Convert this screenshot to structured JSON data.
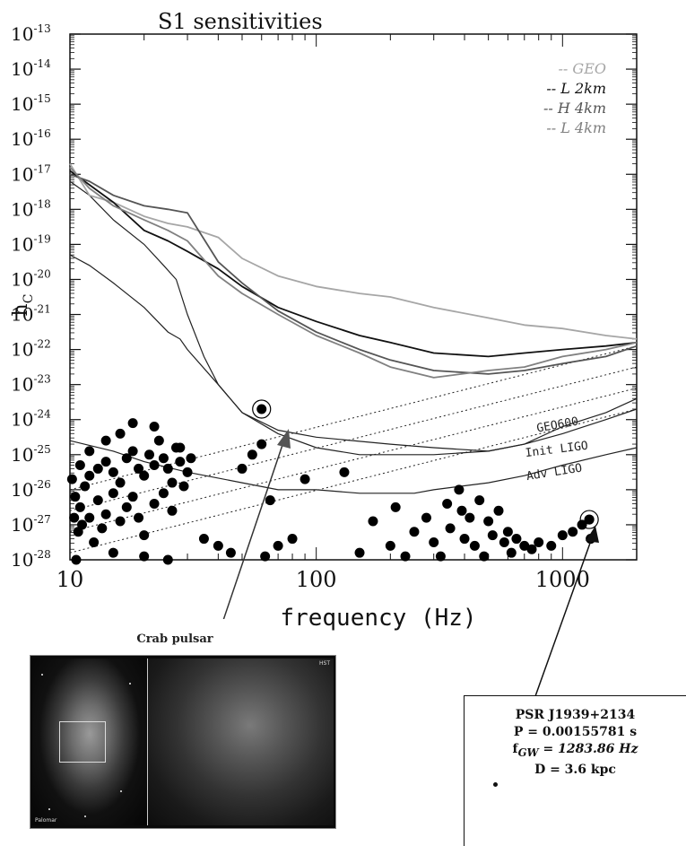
{
  "chart_data": {
    "type": "line",
    "title": "S1 sensitivities",
    "xlabel": "frequency (Hz)",
    "ylabel": "h",
    "ylabel_sub": "C",
    "xscale": "log",
    "yscale": "log",
    "xlim": [
      10,
      2000
    ],
    "ylim": [
      1e-28,
      1e-13
    ],
    "x_ticks": [
      {
        "value": 10,
        "label": "10"
      },
      {
        "value": 100,
        "label": "100"
      },
      {
        "value": 1000,
        "label": "1000"
      }
    ],
    "y_tick_base": "10",
    "y_tick_exponents": [
      "-13",
      "-14",
      "-15",
      "-16",
      "-17",
      "-18",
      "-19",
      "-20",
      "-21",
      "-22",
      "-23",
      "-24",
      "-25",
      "-26",
      "-27",
      "-28"
    ],
    "legend": {
      "placement": "top-right",
      "entries": [
        {
          "name": "-- GEO",
          "color": "#a6a6a6"
        },
        {
          "name": "-- L 2km",
          "color": "#111111"
        },
        {
          "name": "-- H 4km",
          "color": "#555555"
        },
        {
          "name": "-- L 4km",
          "color": "#808080"
        }
      ]
    },
    "measured_series": [
      {
        "name": "GEO",
        "color": "#a6a6a6",
        "points": [
          [
            10,
            -16.7
          ],
          [
            12,
            -17.6
          ],
          [
            15,
            -17.8
          ],
          [
            20,
            -18.2
          ],
          [
            25,
            -18.4
          ],
          [
            30,
            -18.5
          ],
          [
            40,
            -18.8
          ],
          [
            50,
            -19.4
          ],
          [
            70,
            -19.9
          ],
          [
            100,
            -20.2
          ],
          [
            150,
            -20.4
          ],
          [
            200,
            -20.5
          ],
          [
            300,
            -20.8
          ],
          [
            500,
            -21.1
          ],
          [
            700,
            -21.3
          ],
          [
            1000,
            -21.4
          ],
          [
            1500,
            -21.6
          ],
          [
            2000,
            -21.7
          ]
        ]
      },
      {
        "name": "L 2km",
        "color": "#111111",
        "points": [
          [
            10,
            -16.9
          ],
          [
            12,
            -17.3
          ],
          [
            15,
            -17.8
          ],
          [
            20,
            -18.6
          ],
          [
            25,
            -18.9
          ],
          [
            30,
            -19.2
          ],
          [
            40,
            -19.7
          ],
          [
            50,
            -20.2
          ],
          [
            70,
            -20.8
          ],
          [
            100,
            -21.2
          ],
          [
            150,
            -21.6
          ],
          [
            200,
            -21.8
          ],
          [
            300,
            -22.1
          ],
          [
            500,
            -22.2
          ],
          [
            700,
            -22.1
          ],
          [
            1000,
            -22.0
          ],
          [
            1500,
            -21.9
          ],
          [
            2000,
            -21.8
          ]
        ]
      },
      {
        "name": "H 4km",
        "color": "#555555",
        "points": [
          [
            10,
            -17.0
          ],
          [
            12,
            -17.2
          ],
          [
            15,
            -17.6
          ],
          [
            20,
            -17.9
          ],
          [
            25,
            -18.0
          ],
          [
            30,
            -18.1
          ],
          [
            40,
            -19.5
          ],
          [
            50,
            -20.1
          ],
          [
            70,
            -20.9
          ],
          [
            100,
            -21.5
          ],
          [
            150,
            -22.0
          ],
          [
            200,
            -22.3
          ],
          [
            300,
            -22.6
          ],
          [
            500,
            -22.7
          ],
          [
            700,
            -22.6
          ],
          [
            1000,
            -22.4
          ],
          [
            1500,
            -22.2
          ],
          [
            2000,
            -21.9
          ]
        ]
      },
      {
        "name": "L 4km",
        "color": "#808080",
        "points": [
          [
            10,
            -16.8
          ],
          [
            12,
            -17.4
          ],
          [
            15,
            -17.9
          ],
          [
            20,
            -18.3
          ],
          [
            25,
            -18.6
          ],
          [
            30,
            -18.9
          ],
          [
            40,
            -19.9
          ],
          [
            50,
            -20.4
          ],
          [
            70,
            -21.0
          ],
          [
            100,
            -21.6
          ],
          [
            150,
            -22.1
          ],
          [
            200,
            -22.5
          ],
          [
            300,
            -22.8
          ],
          [
            500,
            -22.6
          ],
          [
            700,
            -22.5
          ],
          [
            1000,
            -22.2
          ],
          [
            1500,
            -22.0
          ],
          [
            2000,
            -21.8
          ]
        ]
      }
    ],
    "design_curves": [
      {
        "name": "GEO600",
        "label": "GEO600",
        "points": [
          [
            10,
            -17.2
          ],
          [
            12,
            -17.6
          ],
          [
            15,
            -18.3
          ],
          [
            20,
            -19.0
          ],
          [
            24,
            -19.6
          ],
          [
            27,
            -20.0
          ],
          [
            30,
            -21.0
          ],
          [
            35,
            -22.2
          ],
          [
            40,
            -23.0
          ],
          [
            50,
            -23.8
          ],
          [
            70,
            -24.3
          ],
          [
            100,
            -24.5
          ],
          [
            200,
            -24.7
          ],
          [
            300,
            -24.8
          ],
          [
            500,
            -24.9
          ],
          [
            700,
            -24.7
          ],
          [
            1000,
            -24.2
          ],
          [
            1500,
            -23.8
          ],
          [
            2000,
            -23.4
          ]
        ]
      },
      {
        "name": "Init LIGO",
        "label": "Init LIGO",
        "points": [
          [
            10,
            -19.3
          ],
          [
            12,
            -19.6
          ],
          [
            15,
            -20.1
          ],
          [
            20,
            -20.8
          ],
          [
            25,
            -21.5
          ],
          [
            28,
            -21.7
          ],
          [
            30,
            -22.0
          ],
          [
            40,
            -23.0
          ],
          [
            50,
            -23.8
          ],
          [
            70,
            -24.4
          ],
          [
            100,
            -24.8
          ],
          [
            150,
            -25.0
          ],
          [
            200,
            -25.0
          ],
          [
            300,
            -25.0
          ],
          [
            500,
            -24.9
          ],
          [
            700,
            -24.7
          ],
          [
            1000,
            -24.4
          ],
          [
            1500,
            -24.0
          ],
          [
            2000,
            -23.7
          ]
        ]
      },
      {
        "name": "Adv LIGO",
        "label": "Adv LIGO",
        "points": [
          [
            10,
            -24.6
          ],
          [
            15,
            -24.9
          ],
          [
            20,
            -25.2
          ],
          [
            30,
            -25.5
          ],
          [
            50,
            -25.8
          ],
          [
            70,
            -26.0
          ],
          [
            100,
            -26.0
          ],
          [
            150,
            -26.1
          ],
          [
            200,
            -26.1
          ],
          [
            250,
            -26.1
          ],
          [
            300,
            -26.0
          ],
          [
            500,
            -25.8
          ],
          [
            700,
            -25.6
          ],
          [
            1000,
            -25.3
          ],
          [
            1500,
            -25.0
          ],
          [
            2000,
            -24.8
          ]
        ]
      }
    ],
    "reference_lines": [
      {
        "style": "dotted",
        "points": [
          [
            10,
            -26.0
          ],
          [
            2000,
            -21.9
          ]
        ]
      },
      {
        "style": "dotted",
        "points": [
          [
            10,
            -26.6
          ],
          [
            2000,
            -22.5
          ]
        ]
      },
      {
        "style": "dotted",
        "points": [
          [
            10,
            -27.2
          ],
          [
            2000,
            -23.1
          ]
        ]
      },
      {
        "style": "dotted",
        "points": [
          [
            10,
            -27.8
          ],
          [
            2000,
            -23.7
          ]
        ]
      }
    ],
    "pulsars": {
      "name": "known pulsars",
      "points": [
        [
          11,
          -25.3
        ],
        [
          12,
          -25.6
        ],
        [
          10.5,
          -26.2
        ],
        [
          11.5,
          -25.9
        ],
        [
          13,
          -25.4
        ],
        [
          14,
          -25.2
        ],
        [
          15,
          -25.5
        ],
        [
          16,
          -25.8
        ],
        [
          17,
          -25.1
        ],
        [
          18,
          -24.9
        ],
        [
          19,
          -25.4
        ],
        [
          20,
          -25.6
        ],
        [
          21,
          -25.0
        ],
        [
          22,
          -25.3
        ],
        [
          23,
          -24.6
        ],
        [
          24,
          -25.1
        ],
        [
          25,
          -25.4
        ],
        [
          26,
          -25.8
        ],
        [
          27,
          -24.8
        ],
        [
          28,
          -25.2
        ],
        [
          29,
          -25.9
        ],
        [
          30,
          -25.5
        ],
        [
          31,
          -25.1
        ],
        [
          11,
          -26.5
        ],
        [
          12,
          -26.8
        ],
        [
          10.8,
          -27.2
        ],
        [
          13,
          -26.3
        ],
        [
          14,
          -26.7
        ],
        [
          15,
          -26.1
        ],
        [
          16,
          -26.9
        ],
        [
          17,
          -26.5
        ],
        [
          18,
          -26.2
        ],
        [
          19,
          -26.8
        ],
        [
          20,
          -27.3
        ],
        [
          22,
          -26.4
        ],
        [
          24,
          -26.1
        ],
        [
          26,
          -26.6
        ],
        [
          10.2,
          -25.7
        ],
        [
          10.4,
          -26.8
        ],
        [
          11.2,
          -27.0
        ],
        [
          12.5,
          -27.5
        ],
        [
          13.5,
          -27.1
        ],
        [
          15,
          -27.8
        ],
        [
          20,
          -27.9
        ],
        [
          25,
          -28.0
        ],
        [
          10.6,
          -28.0
        ],
        [
          12,
          -24.9
        ],
        [
          14,
          -24.6
        ],
        [
          16,
          -24.4
        ],
        [
          18,
          -24.1
        ],
        [
          22,
          -24.2
        ],
        [
          28,
          -24.8
        ],
        [
          35,
          -27.4
        ],
        [
          40,
          -27.6
        ],
        [
          45,
          -27.8
        ],
        [
          50,
          -25.4
        ],
        [
          55,
          -25.0
        ],
        [
          60,
          -24.7
        ],
        [
          62,
          -27.9
        ],
        [
          70,
          -27.6
        ],
        [
          65,
          -26.3
        ],
        [
          80,
          -27.4
        ],
        [
          90,
          -25.7
        ],
        [
          130,
          -25.5
        ],
        [
          150,
          -27.8
        ],
        [
          170,
          -26.9
        ],
        [
          200,
          -27.6
        ],
        [
          210,
          -26.5
        ],
        [
          230,
          -27.9
        ],
        [
          250,
          -27.2
        ],
        [
          280,
          -26.8
        ],
        [
          300,
          -27.5
        ],
        [
          320,
          -27.9
        ],
        [
          340,
          -26.4
        ],
        [
          350,
          -27.1
        ],
        [
          380,
          -26.0
        ],
        [
          390,
          -26.6
        ],
        [
          400,
          -27.4
        ],
        [
          420,
          -26.8
        ],
        [
          440,
          -27.6
        ],
        [
          460,
          -26.3
        ],
        [
          480,
          -27.9
        ],
        [
          500,
          -26.9
        ],
        [
          520,
          -27.3
        ],
        [
          550,
          -26.6
        ],
        [
          580,
          -27.5
        ],
        [
          600,
          -27.2
        ],
        [
          620,
          -27.8
        ],
        [
          650,
          -27.4
        ],
        [
          700,
          -27.6
        ],
        [
          750,
          -27.7
        ],
        [
          800,
          -27.5
        ],
        [
          900,
          -27.6
        ],
        [
          1000,
          -27.3
        ],
        [
          1100,
          -27.2
        ],
        [
          1200,
          -27.0
        ],
        [
          1283.86,
          -26.85
        ],
        [
          1300,
          -27.4
        ]
      ]
    },
    "highlighted": [
      {
        "name": "Crab pulsar",
        "x": 60,
        "y": -23.7
      },
      {
        "name": "PSR J1939+2134",
        "x": 1283.86,
        "y": -26.85
      }
    ],
    "annotations": {
      "crab_label": "Crab pulsar",
      "psr_lines": [
        "PSR J1939+2134",
        "P = 0.00155781 s",
        "D = 3.6 kpc"
      ],
      "psr_fgw_prefix": "f",
      "psr_fgw_sub": "GW",
      "psr_fgw_value": "= 1283.86 Hz",
      "inset_label_left": "Palomar",
      "inset_label_right": "HST"
    }
  }
}
